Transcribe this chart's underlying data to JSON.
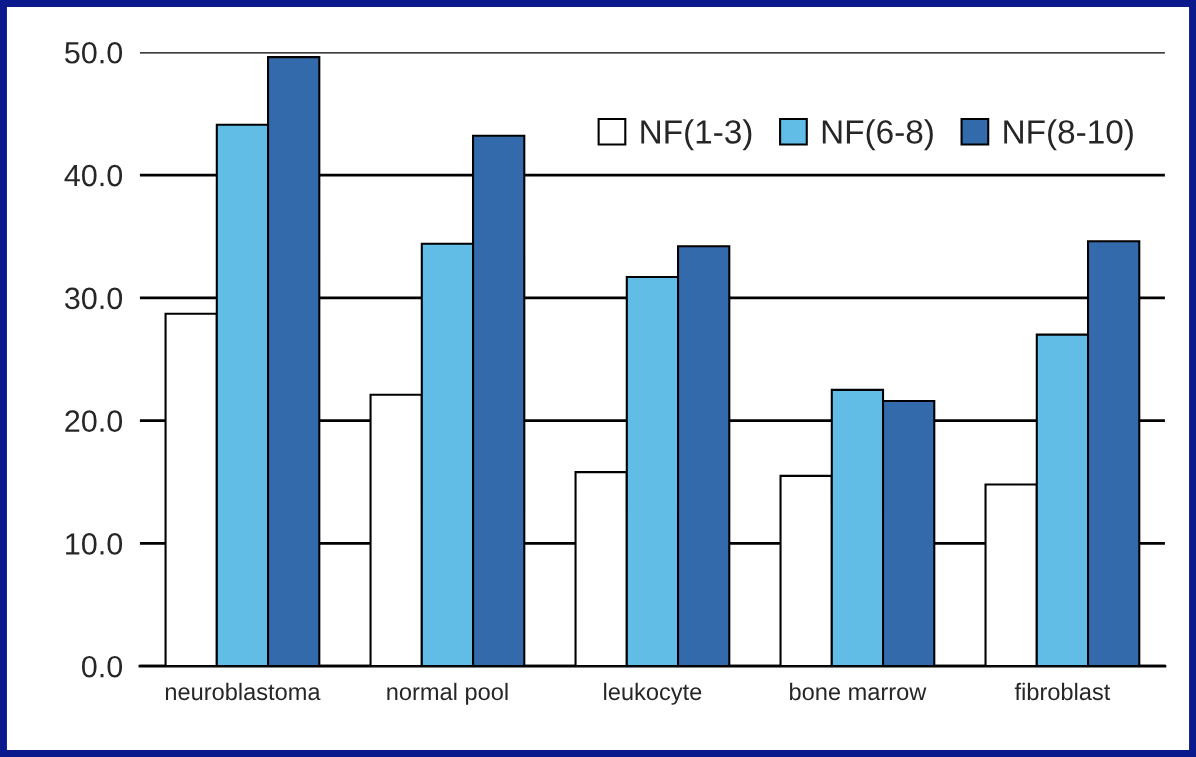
{
  "chart_data": {
    "type": "bar",
    "categories": [
      "neuroblastoma",
      "normal pool",
      "leukocyte",
      "bone marrow",
      "fibroblast"
    ],
    "series": [
      {
        "name": "NF(1-3)",
        "color": "#ffffff",
        "values": [
          28.7,
          22.1,
          15.8,
          15.5,
          14.8
        ]
      },
      {
        "name": "NF(6-8)",
        "color": "#62bde6",
        "values": [
          44.1,
          34.4,
          31.7,
          22.5,
          27.0
        ]
      },
      {
        "name": "NF(8-10)",
        "color": "#336aab",
        "values": [
          49.6,
          43.2,
          34.2,
          21.6,
          34.6
        ]
      }
    ],
    "ylim": [
      0,
      50
    ],
    "yticks": [
      {
        "value": 0,
        "label": "0.0"
      },
      {
        "value": 10,
        "label": "10.0"
      },
      {
        "value": 20,
        "label": "20.0"
      },
      {
        "value": 30,
        "label": "30.0"
      },
      {
        "value": 40,
        "label": "40.0"
      },
      {
        "value": 50,
        "label": "50.0"
      }
    ],
    "grid": "y",
    "legend": "top right"
  }
}
